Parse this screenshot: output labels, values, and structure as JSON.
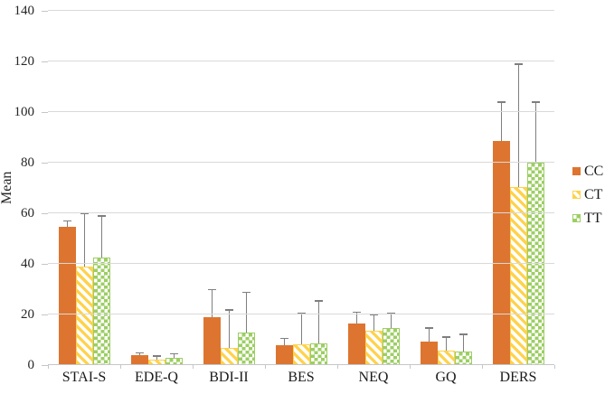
{
  "chart_data": {
    "type": "bar",
    "title": "",
    "xlabel": "",
    "ylabel": "Mean",
    "ylim": [
      0,
      140
    ],
    "ytick_step": 20,
    "grid": true,
    "legend_position": "right",
    "categories": [
      "STAI-S",
      "EDE-Q",
      "BDI-II",
      "BES",
      "NEQ",
      "GQ",
      "DERS"
    ],
    "series": [
      {
        "name": "CC",
        "pattern": "solid",
        "color": "#DD7530",
        "values": [
          54.5,
          4,
          19,
          8,
          16.5,
          9.3,
          88.5
        ],
        "errors": [
          2.5,
          1,
          11,
          2.7,
          4.5,
          5.5,
          15.5
        ]
      },
      {
        "name": "CT",
        "pattern": "diagonal-stripes",
        "color": "#FFD24B",
        "values": [
          39,
          2.3,
          6.8,
          8.2,
          13.5,
          5.8,
          70.5
        ],
        "errors": [
          21,
          1.3,
          15,
          12.3,
          6.5,
          5.4,
          48.5
        ]
      },
      {
        "name": "TT",
        "pattern": "checkerboard",
        "color": "#9CCE63",
        "values": [
          42.5,
          2.9,
          12.8,
          8.6,
          14.8,
          5.4,
          80
        ],
        "errors": [
          16.5,
          1.7,
          16,
          16.9,
          5.6,
          6.8,
          24
        ]
      }
    ],
    "error_bar_color": "#7f7f7f",
    "gridline_color": "#d9d9d9"
  }
}
